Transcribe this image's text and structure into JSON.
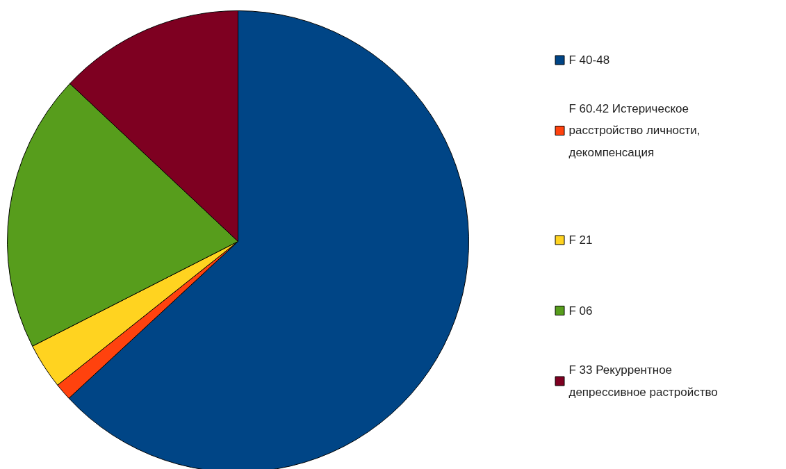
{
  "chart_data": {
    "type": "pie",
    "categories": [
      "F 40-48",
      "F 60.42 Истерическое расстройство личности, декомпенсация",
      "F 21",
      "F 06",
      "F 33 Рекуррентное депрессивное  растройство"
    ],
    "values": [
      63.1,
      1.2,
      3.2,
      19.5,
      13.0
    ],
    "colors": [
      "#004586",
      "#ff420e",
      "#ffd320",
      "#579d1c",
      "#7e0021"
    ],
    "legend": "right"
  }
}
